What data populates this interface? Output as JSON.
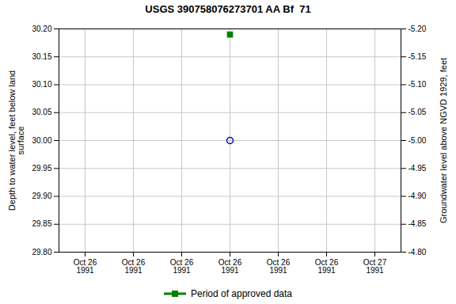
{
  "chart_data": {
    "type": "scatter",
    "title": "USGS 390758076273701 AA Bf  71",
    "ylabel": "Depth to water level, feet below land\nsurface",
    "y2label": "Groundwater level above NGVD 1929, feet",
    "categories": [
      "Oct 26\n1991",
      "Oct 26\n1991",
      "Oct 26\n1991",
      "Oct 26\n1991",
      "Oct 26\n1991",
      "Oct 26\n1991",
      "Oct 27\n1991"
    ],
    "series": [
      {
        "color": "#0000cc",
        "marker": "circle",
        "values": [
          null,
          null,
          null,
          30.0,
          null,
          null,
          null
        ]
      },
      {
        "name": "Period of approved data",
        "color": "#008000",
        "marker": "square",
        "values": [
          null,
          null,
          null,
          30.19,
          null,
          null,
          null
        ]
      }
    ],
    "ylim": [
      29.8,
      30.2
    ],
    "yticks": [
      {
        "value": 29.8,
        "label": "29.80"
      },
      29.85,
      {
        "value": 29.9,
        "label": "29.90"
      },
      29.95,
      {
        "value": 30.0,
        "label": "30.00"
      },
      30.05,
      {
        "value": 30.1,
        "label": "30.10"
      },
      30.15,
      {
        "value": 30.2,
        "label": "30.20"
      }
    ],
    "y2lim": [
      -4.8,
      -5.2
    ],
    "y2ticks": [
      {
        "value": -4.8,
        "label": "-4.80"
      },
      -4.85,
      {
        "value": -4.9,
        "label": "-4.90"
      },
      -4.95,
      {
        "value": -5.0,
        "label": "-5.00"
      },
      -5.05,
      {
        "value": -5.1,
        "label": "-5.10"
      },
      -5.15,
      {
        "value": -5.2,
        "label": "-5.20"
      }
    ],
    "grid": true,
    "legend": "bottom"
  }
}
